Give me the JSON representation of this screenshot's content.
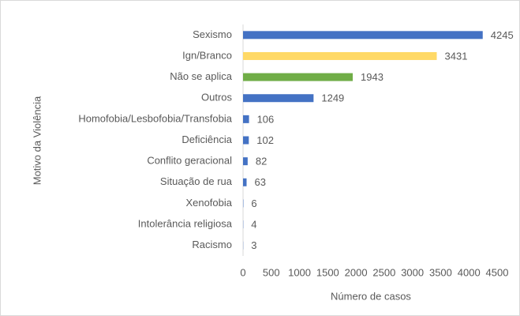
{
  "chart_data": {
    "type": "bar",
    "orientation": "horizontal",
    "categories": [
      "Sexismo",
      "Ign/Branco",
      "Não se aplica",
      "Outros",
      "Homofobia/Lesbofobia/Transfobia",
      "Deficiência",
      "Conflito geracional",
      "Situação de rua",
      "Xenofobia",
      "Intolerância religiosa",
      "Racismo"
    ],
    "values": [
      4245,
      3431,
      1943,
      1249,
      106,
      102,
      82,
      63,
      6,
      4,
      3
    ],
    "colors": [
      "#4472c4",
      "#ffd966",
      "#70ad47",
      "#4472c4",
      "#4472c4",
      "#4472c4",
      "#4472c4",
      "#4472c4",
      "#4472c4",
      "#4472c4",
      "#4472c4"
    ],
    "xlim": [
      0,
      4500
    ],
    "xticks": [
      0,
      500,
      1000,
      1500,
      2000,
      2500,
      3000,
      3500,
      4000,
      4500
    ],
    "xlabel": "Número de casos",
    "ylabel": "Motivo da Violência",
    "grid": false
  }
}
